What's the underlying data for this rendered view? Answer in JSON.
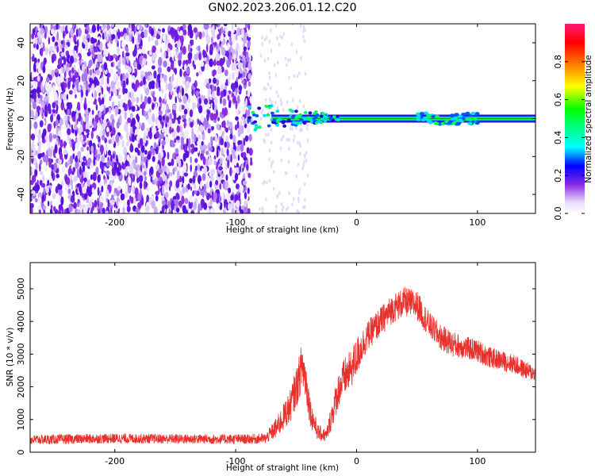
{
  "title": "GN02.2023.206.01.12.C20",
  "colors": {
    "snr_line": "#e8302c",
    "background": "#ffffff",
    "colormap": [
      "#ffffff",
      "#d8c7f7",
      "#8a2be2",
      "#5b1fe0",
      "#0000ff",
      "#00ffff",
      "#00ff00",
      "#ffff00",
      "#ff7f00",
      "#ff0000",
      "#ff1493"
    ]
  },
  "chart_data": [
    {
      "type": "heatmap",
      "title": "",
      "xlabel": "Height of straight line (km)",
      "ylabel": "Frequency (Hz)",
      "xlim": [
        -270,
        148
      ],
      "ylim": [
        -50,
        50
      ],
      "x_ticks": [
        -200,
        -100,
        0,
        100
      ],
      "y_ticks": [
        -40,
        -20,
        0,
        20,
        40
      ],
      "grid": false,
      "colorbar": {
        "label": "Normalized spectral amplitude",
        "range": [
          0,
          1
        ],
        "ticks": [
          0.0,
          0.2,
          0.4,
          0.6,
          0.8
        ]
      },
      "features": [
        {
          "description": "dense noise speckle region",
          "x_range": [
            -270,
            -87
          ],
          "y_range": [
            -50,
            50
          ]
        },
        {
          "description": "dominant spectral line",
          "x_range": [
            -90,
            148
          ],
          "frequency_hz": 0
        }
      ]
    },
    {
      "type": "line",
      "title": "",
      "xlabel": "Height of straight line (km)",
      "ylabel": "SNR (10 * v/v)",
      "xlim": [
        -270,
        148
      ],
      "ylim": [
        0,
        5800
      ],
      "x_ticks": [
        -200,
        -100,
        0,
        100
      ],
      "y_ticks": [
        0,
        1000,
        2000,
        3000,
        4000,
        5000
      ],
      "grid": false,
      "series": [
        {
          "x": [
            -270,
            -240,
            -200,
            -160,
            -120,
            -90,
            -75,
            -65,
            -55,
            -48,
            -45,
            -42,
            -38,
            -32,
            -25,
            -20,
            -15,
            -10,
            -5,
            0,
            5,
            10,
            20,
            30,
            40,
            50,
            60,
            70,
            80,
            90,
            100,
            110,
            120,
            130,
            140,
            148
          ],
          "y": [
            380,
            400,
            420,
            410,
            400,
            400,
            420,
            800,
            1400,
            2200,
            2700,
            2200,
            1200,
            600,
            500,
            1200,
            1900,
            2300,
            2500,
            2900,
            3300,
            3600,
            4000,
            4400,
            4600,
            4500,
            3900,
            3500,
            3300,
            3200,
            3100,
            2900,
            2800,
            2700,
            2500,
            2400
          ],
          "noise_amplitude": [
            300,
            300,
            300,
            300,
            300,
            300,
            320,
            700,
            1000,
            1300,
            1500,
            1300,
            900,
            500,
            400,
            900,
            1100,
            1200,
            1200,
            1200,
            1000,
            900,
            900,
            900,
            900,
            900,
            800,
            800,
            800,
            700,
            700,
            650,
            600,
            600,
            550,
            500
          ]
        }
      ]
    }
  ]
}
